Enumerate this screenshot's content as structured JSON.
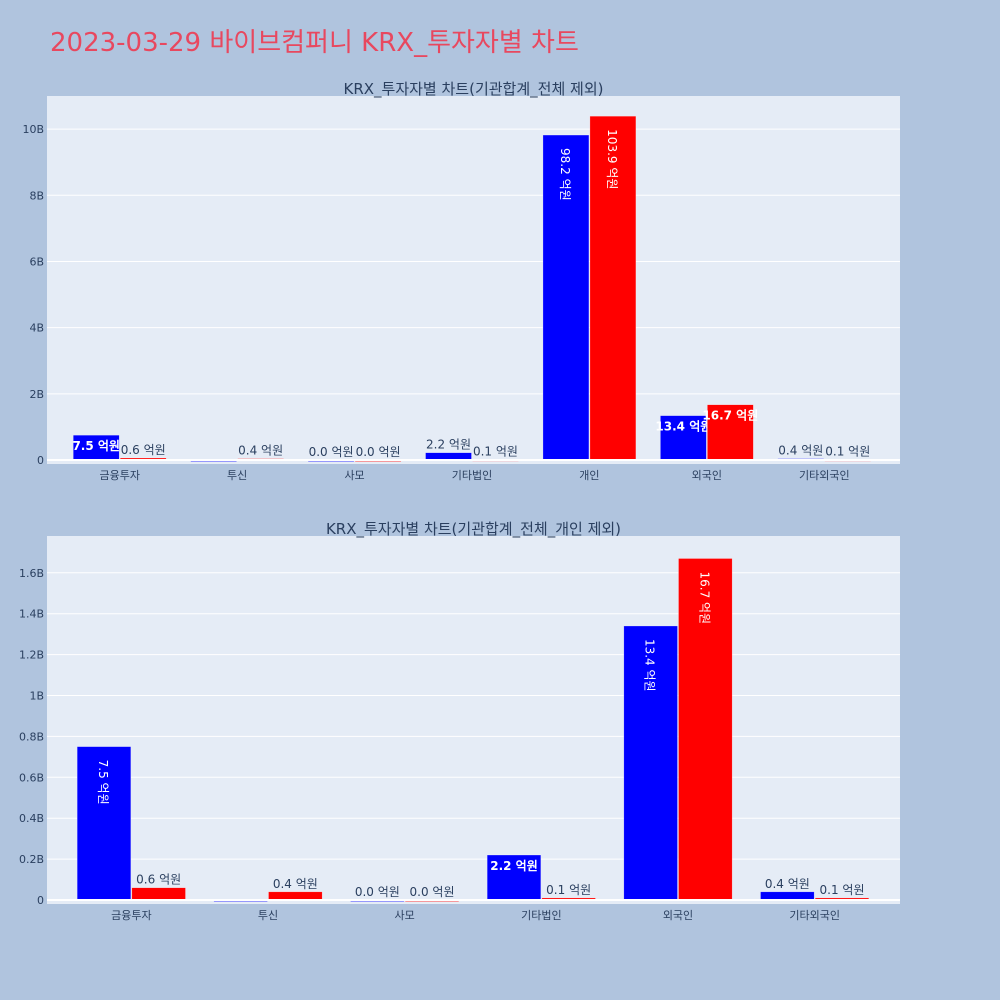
{
  "title": "2023-03-29 바이브컴퍼니 KRX_투자자별 차트",
  "colors": {
    "series_a": "#0000ff",
    "series_b": "#ff0000",
    "plot_bg": "#e5ecf6",
    "page_bg": "#b0c4de"
  },
  "chart_data": [
    {
      "type": "bar",
      "title": "KRX_투자자별 차트(기관합계_전체 제외)",
      "categories": [
        "금융투자",
        "투신",
        "사모",
        "기타법인",
        "개인",
        "외국인",
        "기타외국인"
      ],
      "series": [
        {
          "values": [
            0.75,
            0,
            0.0,
            0.22,
            9.82,
            1.34,
            0.04
          ],
          "labels": [
            "7.5 억원",
            "",
            "0.0 억원",
            "2.2 억원",
            "98.2 억원",
            "13.4 억원",
            "0.4 억원"
          ]
        },
        {
          "values": [
            0.06,
            0.04,
            0.0,
            0.01,
            10.39,
            1.67,
            0.01
          ],
          "labels": [
            "0.6 억원",
            "0.4 억원",
            "0.0 억원",
            "0.1 억원",
            "103.9 억원",
            "16.7 억원",
            "0.1 억원"
          ]
        }
      ],
      "unit": "B",
      "ylim": [
        0,
        11
      ],
      "yticks": [
        0,
        2,
        4,
        6,
        8,
        10
      ],
      "ytick_labels": [
        "0",
        "2B",
        "4B",
        "6B",
        "8B",
        "10B"
      ]
    },
    {
      "type": "bar",
      "title": "KRX_투자자별 차트(기관합계_전체_개인 제외)",
      "categories": [
        "금융투자",
        "투신",
        "사모",
        "기타법인",
        "외국인",
        "기타외국인"
      ],
      "series": [
        {
          "values": [
            0.75,
            0,
            0.0,
            0.22,
            1.34,
            0.04
          ],
          "labels": [
            "7.5 억원",
            "",
            "0.0 억원",
            "2.2 억원",
            "13.4 억원",
            "0.4 억원"
          ]
        },
        {
          "values": [
            0.06,
            0.04,
            0.0,
            0.01,
            1.67,
            0.01
          ],
          "labels": [
            "0.6 억원",
            "0.4 억원",
            "0.0 억원",
            "0.1 억원",
            "16.7 억원",
            "0.1 억원"
          ]
        }
      ],
      "unit": "B",
      "ylim": [
        0,
        1.78
      ],
      "yticks": [
        0,
        0.2,
        0.4,
        0.6,
        0.8,
        1.0,
        1.2,
        1.4,
        1.6
      ],
      "ytick_labels": [
        "0",
        "0.2B",
        "0.4B",
        "0.6B",
        "0.8B",
        "1B",
        "1.2B",
        "1.4B",
        "1.6B"
      ]
    }
  ]
}
